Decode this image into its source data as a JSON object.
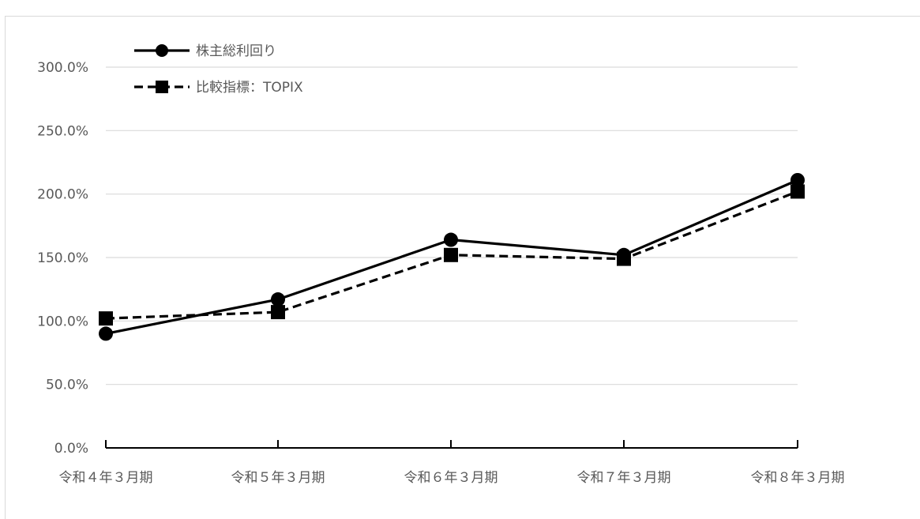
{
  "chart_data": {
    "type": "line",
    "categories": [
      "令和４年３月期",
      "令和５年３月期",
      "令和６年３月期",
      "令和７年３月期",
      "令和８年３月期"
    ],
    "series": [
      {
        "name": "株主総利回り",
        "values": [
          90.0,
          117.0,
          164.0,
          152.0,
          211.0
        ],
        "line_style": "solid",
        "marker": "circle",
        "color": "#000000"
      },
      {
        "name": "比較指標：TOPIX",
        "values": [
          102.0,
          107.0,
          152.0,
          149.0,
          202.0
        ],
        "line_style": "dashed",
        "marker": "square",
        "color": "#000000"
      }
    ],
    "y_ticks": [
      "0.0%",
      "50.0%",
      "100.0%",
      "150.0%",
      "200.0%",
      "250.0%",
      "300.0%"
    ],
    "ylim": [
      0,
      300
    ],
    "grid": true,
    "legend_position": "top-left"
  }
}
